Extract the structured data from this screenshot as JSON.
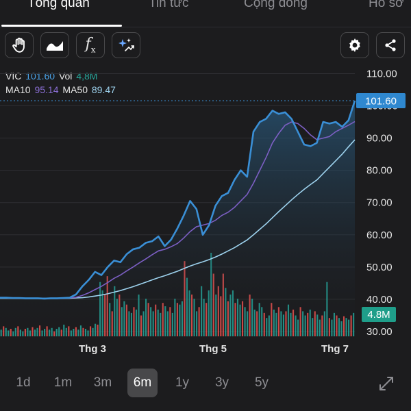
{
  "tabs": [
    {
      "label": "Tổng quan",
      "active": true
    },
    {
      "label": "Tin tức",
      "active": false
    },
    {
      "label": "Cộng đồng",
      "active": false
    },
    {
      "label": "Hồ sơ",
      "active": false
    }
  ],
  "toolbar": {
    "icons": [
      "hand-icon",
      "area-chart-icon",
      "function-icon",
      "sparkle-icon"
    ],
    "right_icons": [
      "gear-icon",
      "share-icon"
    ],
    "fx_label": "f",
    "fx_sub": "x"
  },
  "legend": {
    "symbol": "VIC",
    "price": "101.60",
    "vol_label": "Vol",
    "vol": "4,8M",
    "ma10_label": "MA10",
    "ma10": "95.14",
    "ma50_label": "MA50",
    "ma50": "89.47"
  },
  "chart_data": {
    "type": "line",
    "x_ticks": [
      "Thg 3",
      "Thg 5",
      "Thg 7"
    ],
    "y_ticks": [
      "110.00",
      "100.00",
      "90.00",
      "80.00",
      "70.00",
      "60.00",
      "50.00",
      "40.00",
      "30.00"
    ],
    "ylim": [
      28.5,
      113.5
    ],
    "last_price_label": "101.60",
    "volume_label": "4.8M",
    "series": [
      {
        "name": "VIC",
        "color": "#3a8fd6",
        "values": [
          40.5,
          40.5,
          40.4,
          40.4,
          40.3,
          40.3,
          40.3,
          40.2,
          40.3,
          40.3,
          40.4,
          40.5,
          41.5,
          44.0,
          46.0,
          48.5,
          47.5,
          50.0,
          52.0,
          51.5,
          54.0,
          55.5,
          56.0,
          57.5,
          58.0,
          59.5,
          56.5,
          58.5,
          62.0,
          66.0,
          70.5,
          68.0,
          60.0,
          63.0,
          69.0,
          72.0,
          73.0,
          77.0,
          80.0,
          78.0,
          92.0,
          95.0,
          96.0,
          98.5,
          97.5,
          98.0,
          96.0,
          92.0,
          88.0,
          87.5,
          88.5,
          95.0,
          94.5,
          95.0,
          93.5,
          95.5,
          101.6
        ]
      },
      {
        "name": "MA10",
        "color": "#7c5fc4",
        "values": [
          40.5,
          40.5,
          40.4,
          40.4,
          40.3,
          40.3,
          40.3,
          40.3,
          40.3,
          40.3,
          40.3,
          40.4,
          40.6,
          41.2,
          42.0,
          43.0,
          44.0,
          45.2,
          46.5,
          47.5,
          48.8,
          50.0,
          51.3,
          52.5,
          53.8,
          55.0,
          55.5,
          56.3,
          57.3,
          59.0,
          61.0,
          62.5,
          63.0,
          63.5,
          64.5,
          66.0,
          67.0,
          68.5,
          70.5,
          72.5,
          76.0,
          80.0,
          84.0,
          88.5,
          91.5,
          94.0,
          95.0,
          94.5,
          93.0,
          91.0,
          89.5,
          90.0,
          90.5,
          92.0,
          93.0,
          94.0,
          95.14
        ]
      },
      {
        "name": "MA50",
        "color": "#9ed3ef",
        "values": [
          40.3,
          40.3,
          40.3,
          40.3,
          40.3,
          40.3,
          40.3,
          40.3,
          40.3,
          40.3,
          40.3,
          40.3,
          40.4,
          40.5,
          40.7,
          41.0,
          41.3,
          41.7,
          42.2,
          42.7,
          43.3,
          43.9,
          44.6,
          45.3,
          46.0,
          46.7,
          47.3,
          48.0,
          48.7,
          49.5,
          50.3,
          51.0,
          51.6,
          52.3,
          53.1,
          54.0,
          55.0,
          56.0,
          57.2,
          58.4,
          60.0,
          61.7,
          63.4,
          65.3,
          67.2,
          69.0,
          70.8,
          72.5,
          74.1,
          75.6,
          77.0,
          79.0,
          81.0,
          83.0,
          85.0,
          87.3,
          89.47
        ]
      }
    ],
    "volume": {
      "up_color": "#26a69a",
      "down_color": "#ef5350",
      "values": [
        0.08,
        0.12,
        0.1,
        0.07,
        0.09,
        0.06,
        0.1,
        0.12,
        0.08,
        0.06,
        0.09,
        0.1,
        0.07,
        0.11,
        0.08,
        0.1,
        0.13,
        0.07,
        0.09,
        0.12,
        0.08,
        0.1,
        0.06,
        0.09,
        0.11,
        0.08,
        0.14,
        0.1,
        0.12,
        0.07,
        0.09,
        0.11,
        0.08,
        0.13,
        0.1,
        0.09,
        0.07,
        0.12,
        0.1,
        0.15,
        0.14,
        0.65,
        0.55,
        0.5,
        0.72,
        0.4,
        0.3,
        0.6,
        0.45,
        0.5,
        0.35,
        0.42,
        0.38,
        0.3,
        0.28,
        0.35,
        0.32,
        0.5,
        0.25,
        0.3,
        0.45,
        0.4,
        0.35,
        0.3,
        0.38,
        0.32,
        0.28,
        0.4,
        0.36,
        0.3,
        0.35,
        0.28,
        0.45,
        0.4,
        0.38,
        0.42,
        0.9,
        0.7,
        0.55,
        0.5,
        0.45,
        0.3,
        0.35,
        0.6,
        0.45,
        0.4,
        0.55,
        1.0,
        0.75,
        0.5,
        0.6,
        0.48,
        0.75,
        0.58,
        0.42,
        0.5,
        0.55,
        0.4,
        0.45,
        0.38,
        0.42,
        0.35,
        0.3,
        0.5,
        0.45,
        0.32,
        0.3,
        0.4,
        0.35,
        0.28,
        0.22,
        0.25,
        0.4,
        0.32,
        0.28,
        0.35,
        0.3,
        0.26,
        0.3,
        0.38,
        0.28,
        0.32,
        0.25,
        0.2,
        0.35,
        0.3,
        0.25,
        0.28,
        0.32,
        0.22,
        0.3,
        0.26,
        0.2,
        0.25,
        0.3,
        0.65,
        0.22,
        0.2,
        0.28,
        0.25,
        0.22,
        0.18,
        0.24,
        0.22,
        0.2,
        0.25,
        0.28
      ]
    }
  },
  "periods": [
    {
      "label": "1d",
      "active": false
    },
    {
      "label": "1m",
      "active": false
    },
    {
      "label": "3m",
      "active": false
    },
    {
      "label": "6m",
      "active": true
    },
    {
      "label": "1y",
      "active": false
    },
    {
      "label": "3y",
      "active": false
    },
    {
      "label": "5y",
      "active": false
    }
  ],
  "expand_icon": "expand-icon"
}
